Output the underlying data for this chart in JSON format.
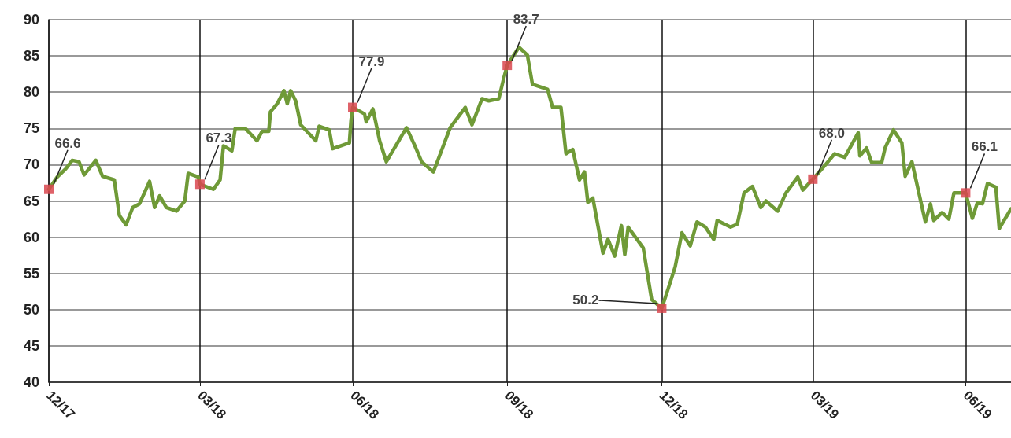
{
  "chart_data": {
    "type": "line",
    "x": [
      "2017-12-31",
      "2018-01-05",
      "2018-01-10",
      "2018-01-14",
      "2018-01-18",
      "2018-01-21",
      "2018-01-28",
      "2018-02-01",
      "2018-02-08",
      "2018-02-11",
      "2018-02-15",
      "2018-02-19",
      "2018-02-23",
      "2018-03-01",
      "2018-03-04",
      "2018-03-07",
      "2018-03-11",
      "2018-03-17",
      "2018-03-22",
      "2018-03-24",
      "2018-03-30",
      "2018-03-31",
      "2018-04-08",
      "2018-04-12",
      "2018-04-14",
      "2018-04-19",
      "2018-04-21",
      "2018-04-27",
      "2018-05-04",
      "2018-05-07",
      "2018-05-11",
      "2018-05-12",
      "2018-05-16",
      "2018-05-20",
      "2018-05-22",
      "2018-05-24",
      "2018-05-27",
      "2018-05-30",
      "2018-06-08",
      "2018-06-10",
      "2018-06-16",
      "2018-06-18",
      "2018-06-23",
      "2018-06-28",
      "2018-06-29",
      "2018-06-30",
      "2018-07-07",
      "2018-07-08",
      "2018-07-12",
      "2018-07-16",
      "2018-07-20",
      "2018-08-01",
      "2018-08-06",
      "2018-08-10",
      "2018-08-17",
      "2018-08-20",
      "2018-08-27",
      "2018-09-05",
      "2018-09-09",
      "2018-09-15",
      "2018-09-19",
      "2018-09-25",
      "2018-09-28",
      "2018-09-30",
      "2018-10-07",
      "2018-10-12",
      "2018-10-15",
      "2018-10-24",
      "2018-10-27",
      "2018-11-01",
      "2018-11-04",
      "2018-11-08",
      "2018-11-12",
      "2018-11-15",
      "2018-11-17",
      "2018-11-20",
      "2018-11-26",
      "2018-11-29",
      "2018-12-03",
      "2018-12-07",
      "2018-12-09",
      "2018-12-11",
      "2018-12-20",
      "2018-12-25",
      "2018-12-31",
      "2019-01-04",
      "2019-01-08",
      "2019-01-12",
      "2019-01-17",
      "2019-01-21",
      "2019-01-26",
      "2019-01-31",
      "2019-02-02",
      "2019-02-10",
      "2019-02-14",
      "2019-02-18",
      "2019-02-23",
      "2019-02-28",
      "2019-03-03",
      "2019-03-10",
      "2019-03-15",
      "2019-03-22",
      "2019-03-25",
      "2019-03-31",
      "2019-04-05",
      "2019-04-13",
      "2019-04-19",
      "2019-04-27",
      "2019-04-28",
      "2019-05-02",
      "2019-05-05",
      "2019-05-11",
      "2019-05-13",
      "2019-05-18",
      "2019-05-23",
      "2019-05-25",
      "2019-05-29",
      "2019-06-06",
      "2019-06-09",
      "2019-06-11",
      "2019-06-16",
      "2019-06-20",
      "2019-06-23",
      "2019-06-30",
      "2019-07-04",
      "2019-07-07",
      "2019-07-10",
      "2019-07-13",
      "2019-07-18",
      "2019-07-20",
      "2019-07-27"
    ],
    "series": [
      {
        "color": "#6f9a37",
        "values": [
          66.6,
          68.3,
          69.4,
          70.6,
          70.4,
          68.6,
          70.6,
          68.4,
          67.9,
          63.0,
          61.7,
          64.1,
          64.6,
          67.7,
          64.1,
          65.7,
          64.1,
          63.6,
          65.0,
          68.8,
          68.3,
          67.3,
          66.6,
          67.9,
          72.6,
          71.9,
          75.0,
          75.0,
          73.3,
          74.6,
          74.6,
          77.3,
          78.4,
          80.2,
          78.4,
          80.2,
          78.8,
          75.5,
          73.3,
          75.3,
          74.8,
          72.2,
          72.6,
          73.0,
          76.2,
          77.9,
          77.0,
          75.9,
          77.7,
          73.3,
          70.4,
          75.1,
          72.6,
          70.4,
          69.0,
          70.8,
          75.1,
          77.9,
          75.5,
          79.1,
          78.8,
          79.1,
          82.0,
          83.7,
          86.2,
          85.1,
          81.1,
          80.4,
          77.9,
          77.9,
          71.5,
          72.1,
          67.9,
          69.0,
          64.8,
          65.4,
          57.8,
          59.7,
          57.4,
          61.6,
          57.6,
          61.4,
          58.5,
          51.4,
          50.2,
          53.0,
          55.9,
          60.6,
          58.8,
          62.1,
          61.4,
          59.7,
          62.3,
          61.4,
          61.8,
          66.1,
          67.0,
          64.1,
          65.0,
          63.6,
          66.1,
          68.3,
          66.5,
          68.0,
          69.3,
          71.5,
          71.0,
          74.4,
          71.2,
          72.3,
          70.3,
          70.3,
          72.3,
          74.8,
          73.0,
          68.4,
          70.4,
          62.1,
          64.6,
          62.3,
          63.4,
          62.5,
          66.1,
          66.1,
          62.6,
          64.8,
          64.6,
          67.4,
          66.9,
          61.2,
          63.9
        ]
      }
    ],
    "annotations": [
      {
        "text": "66.6",
        "x": "2017-12-31",
        "y": 66.6
      },
      {
        "text": "67.3",
        "x": "2018-03-31",
        "y": 67.3
      },
      {
        "text": "77.9",
        "x": "2018-06-30",
        "y": 77.9
      },
      {
        "text": "83.7",
        "x": "2018-09-30",
        "y": 83.7
      },
      {
        "text": "50.2",
        "x": "2018-12-31",
        "y": 50.2
      },
      {
        "text": "68.0",
        "x": "2019-03-31",
        "y": 68.0
      },
      {
        "text": "66.1",
        "x": "2019-06-30",
        "y": 66.1
      }
    ],
    "xlim": [
      "2017-12-31",
      "2019-07-27"
    ],
    "xticks": [
      {
        "value": "2017-12-31",
        "label": "12/17"
      },
      {
        "value": "2018-03-31",
        "label": "03/18"
      },
      {
        "value": "2018-06-30",
        "label": "06/18"
      },
      {
        "value": "2018-09-30",
        "label": "09/18"
      },
      {
        "value": "2018-12-31",
        "label": "12/18"
      },
      {
        "value": "2019-03-31",
        "label": "03/19"
      },
      {
        "value": "2019-06-30",
        "label": "06/19"
      }
    ],
    "ylim": [
      40,
      90
    ],
    "yticks": [
      40,
      45,
      50,
      55,
      60,
      65,
      70,
      75,
      80,
      85,
      90
    ],
    "grid": true,
    "marker": "none",
    "line_style": "solid"
  }
}
